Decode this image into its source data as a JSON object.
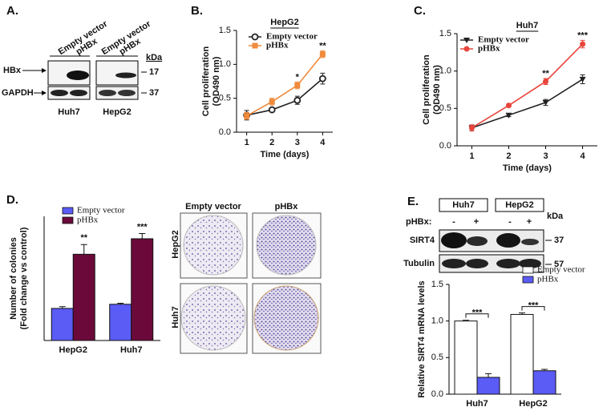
{
  "panel_labels": [
    "A.",
    "B.",
    "C.",
    "D.",
    "E."
  ],
  "blot_a": {
    "lanes": [
      "Empty vector",
      "pHBx",
      "Empty vector",
      "pHBx"
    ],
    "rows": [
      "HBx",
      "GAPDH"
    ],
    "kda_header": "kDa",
    "kda": [
      "17",
      "37"
    ],
    "cells": [
      "Huh7",
      "HepG2"
    ]
  },
  "colony": {
    "columns": [
      "Empty vector",
      "pHBx"
    ],
    "rows": [
      "HepG2",
      "Huh7"
    ]
  },
  "blot_e": {
    "cells": [
      "Huh7",
      "HepG2"
    ],
    "treatment": "pHBx:",
    "lanes": [
      "-",
      "+",
      "-",
      "+"
    ],
    "kda_header": "kDa",
    "rows": [
      "SIRT4",
      "Tubulin"
    ],
    "kda": [
      "37",
      "57"
    ]
  },
  "chart_data": [
    {
      "type": "line",
      "title": "HepG2",
      "xlabel": "Time (days)",
      "ylabel": [
        "Cell proliferation",
        "(OD490 nm)"
      ],
      "x": [
        1,
        2,
        3,
        4
      ],
      "xlim": [
        0.6,
        4.4
      ],
      "xticks": [
        1,
        2,
        3,
        4
      ],
      "ylim": [
        0,
        1.5
      ],
      "yticks": [
        {
          "value": 0,
          "label": "0.0"
        },
        0.5,
        {
          "value": 1,
          "label": "1.0"
        },
        1.5
      ],
      "series": [
        {
          "name": "Empty vector",
          "color": "#222222",
          "marker": "circle-open",
          "values": [
            0.25,
            0.33,
            0.47,
            0.79
          ],
          "errors": [
            0.07,
            0.03,
            0.06,
            0.08
          ]
        },
        {
          "name": "pHBx",
          "color": "#f08a3c",
          "marker": "square",
          "values": [
            0.24,
            0.45,
            0.69,
            1.15
          ],
          "errors": [
            0.05,
            0.05,
            0.05,
            0.05
          ]
        }
      ],
      "annotations": [
        {
          "text": "*",
          "x": 3
        },
        {
          "text": "**",
          "x": 4
        }
      ]
    },
    {
      "type": "line",
      "title": "Huh7",
      "xlabel": "Time (days)",
      "ylabel": [
        "Cell proliferation",
        "(OD490 nm)"
      ],
      "x": [
        1,
        2,
        3,
        4
      ],
      "xlim": [
        0.6,
        4.4
      ],
      "xticks": [
        1,
        2,
        3,
        4
      ],
      "ylim": [
        0,
        1.5
      ],
      "yticks": [
        {
          "value": 0,
          "label": "0.0"
        },
        0.5,
        {
          "value": 1,
          "label": "1.0"
        },
        1.5
      ],
      "series": [
        {
          "name": "Empty vector",
          "color": "#222222",
          "marker": "triangle-down",
          "values": [
            0.24,
            0.41,
            0.58,
            0.89
          ],
          "errors": [
            0.04,
            0.02,
            0.04,
            0.06
          ]
        },
        {
          "name": "pHBx",
          "color": "#e8453c",
          "marker": "circle",
          "values": [
            0.24,
            0.54,
            0.86,
            1.36
          ],
          "errors": [
            0.04,
            0.02,
            0.04,
            0.05
          ]
        }
      ],
      "annotations": [
        {
          "text": "**",
          "x": 3
        },
        {
          "text": "***",
          "x": 4
        }
      ]
    },
    {
      "type": "bar",
      "ylabel": [
        "Number of colonies",
        "(Fold change vs control)"
      ],
      "categories": [
        "HepG2",
        "Huh7"
      ],
      "ylim": [
        0,
        3.6
      ],
      "series": [
        {
          "name": "Empty vector",
          "color": "#5b5bf5",
          "values": [
            0.93,
            1.05
          ],
          "errors": [
            0.05,
            0.03
          ]
        },
        {
          "name": "pHBx",
          "color": "#6b0a3a",
          "values": [
            2.5,
            2.95
          ],
          "errors": [
            0.28,
            0.15
          ]
        }
      ],
      "annotations": [
        "**",
        "***"
      ],
      "annotation_style": "above"
    },
    {
      "type": "bar",
      "ylabel": [
        "Relative SIRT4 mRNA levels"
      ],
      "categories": [
        "Huh7",
        "HepG2"
      ],
      "ylim": [
        0,
        1.5
      ],
      "yticks": [
        {
          "value": 0,
          "label": "0.0"
        },
        0.5,
        {
          "value": 1,
          "label": "1.0"
        },
        1.5
      ],
      "series": [
        {
          "name": "Empty vector",
          "color": "#ffffff",
          "values": [
            1.0,
            1.09
          ],
          "errors": [
            0.01,
            0.02
          ]
        },
        {
          "name": "pHBx",
          "color": "#5b5bf5",
          "values": [
            0.23,
            0.32
          ],
          "errors": [
            0.05,
            0.02
          ]
        }
      ],
      "annotations": [
        "***",
        "***"
      ],
      "annotation_style": "bracket"
    }
  ]
}
